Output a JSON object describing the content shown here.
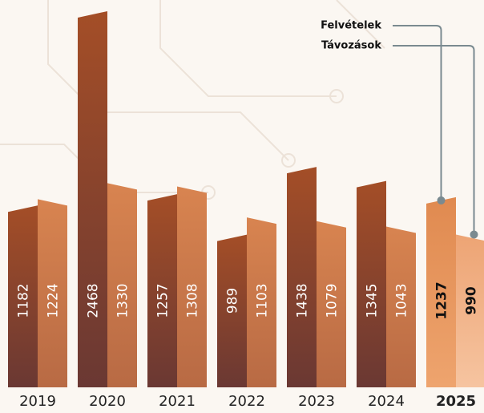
{
  "chart_data": {
    "type": "bar",
    "categories": [
      "2019",
      "2020",
      "2021",
      "2022",
      "2023",
      "2024",
      "2025"
    ],
    "series": [
      {
        "name": "Felvételek",
        "color": "#9c4a26",
        "values": [
          1182,
          2468,
          1257,
          989,
          1438,
          1345,
          1237
        ]
      },
      {
        "name": "Távozások",
        "color": "#d2804c",
        "values": [
          1224,
          1330,
          1308,
          1103,
          1079,
          1043,
          990
        ]
      }
    ],
    "highlight": 6
  }
}
